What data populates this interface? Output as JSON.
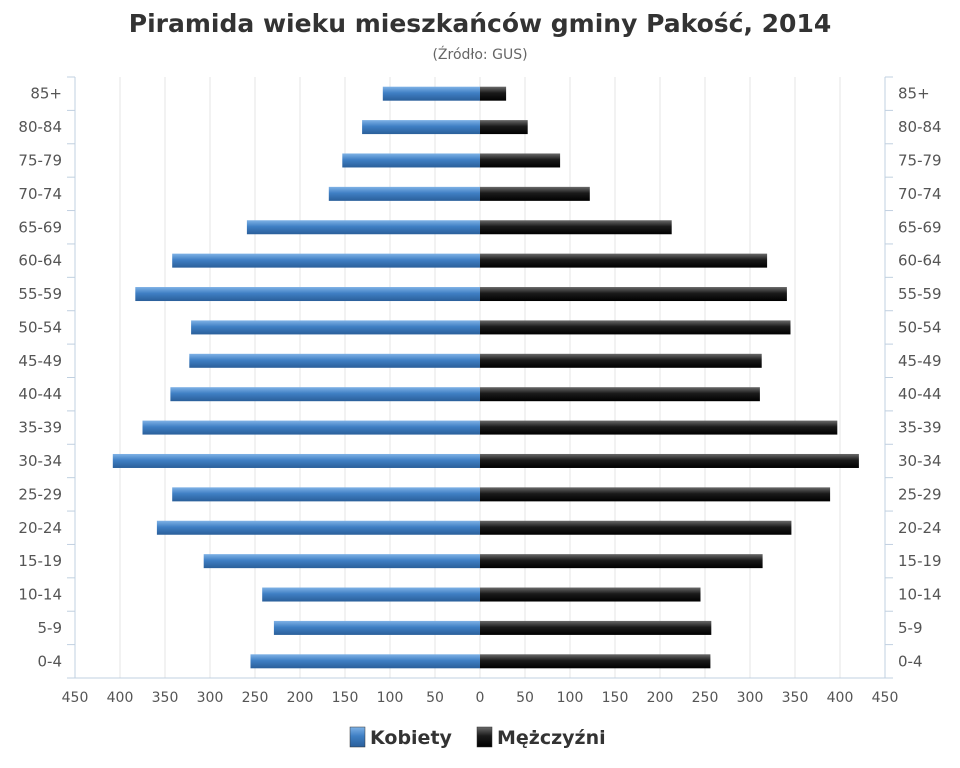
{
  "chart_data": {
    "type": "bar",
    "orientation": "horizontal",
    "layout": "population-pyramid",
    "title": "Piramida wieku mieszkańców gminy Pakość, 2014",
    "subtitle": "(Źródło: GUS)",
    "categories": [
      "85+",
      "80-84",
      "75-79",
      "70-74",
      "65-69",
      "60-64",
      "55-59",
      "50-54",
      "45-49",
      "40-44",
      "35-39",
      "30-34",
      "25-29",
      "20-24",
      "15-19",
      "10-14",
      "5-9",
      "0-4"
    ],
    "series": [
      {
        "name": "Kobiety",
        "color": "#3f7fc4",
        "side": "left",
        "values": [
          108,
          131,
          153,
          168,
          259,
          342,
          383,
          321,
          323,
          344,
          375,
          408,
          342,
          359,
          307,
          242,
          229,
          255
        ]
      },
      {
        "name": "Mężczyźni",
        "color": "#1a1a1a",
        "side": "right",
        "values": [
          29,
          53,
          89,
          122,
          213,
          319,
          341,
          345,
          313,
          311,
          397,
          421,
          389,
          346,
          314,
          245,
          257,
          256
        ]
      }
    ],
    "xlim": [
      -450,
      450
    ],
    "xticks": [
      "450",
      "400",
      "350",
      "300",
      "250",
      "200",
      "150",
      "100",
      "50",
      "0",
      "50",
      "100",
      "150",
      "200",
      "250",
      "300",
      "350",
      "400",
      "450"
    ],
    "grid": true,
    "legend_position": "bottom-center"
  }
}
